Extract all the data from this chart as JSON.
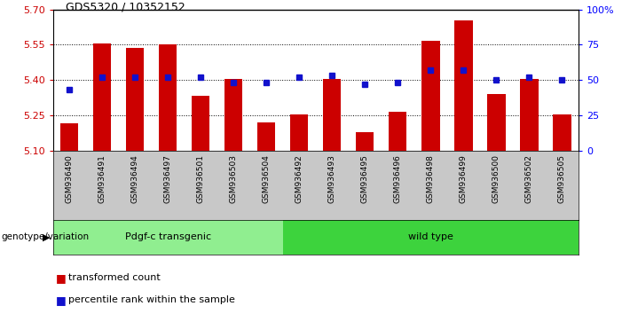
{
  "title": "GDS5320 / 10352152",
  "samples": [
    "GSM936490",
    "GSM936491",
    "GSM936494",
    "GSM936497",
    "GSM936501",
    "GSM936503",
    "GSM936504",
    "GSM936492",
    "GSM936493",
    "GSM936495",
    "GSM936496",
    "GSM936498",
    "GSM936499",
    "GSM936500",
    "GSM936502",
    "GSM936505"
  ],
  "bar_values": [
    5.215,
    5.555,
    5.535,
    5.55,
    5.335,
    5.405,
    5.22,
    5.255,
    5.405,
    5.18,
    5.265,
    5.565,
    5.655,
    5.34,
    5.405,
    5.255
  ],
  "percentile_values": [
    43,
    52,
    52,
    52,
    52,
    48,
    48,
    52,
    53,
    47,
    48,
    57,
    57,
    50,
    52,
    50
  ],
  "groups": [
    {
      "label": "Pdgf-c transgenic",
      "start": 0,
      "end": 7,
      "color": "#90EE90"
    },
    {
      "label": "wild type",
      "start": 7,
      "end": 16,
      "color": "#3DD33D"
    }
  ],
  "group_label": "genotype/variation",
  "ymin": 5.1,
  "ymax": 5.7,
  "y2min": 0,
  "y2max": 100,
  "yticks": [
    5.1,
    5.25,
    5.4,
    5.55,
    5.7
  ],
  "y2ticks": [
    0,
    25,
    50,
    75,
    100
  ],
  "bar_color": "#CC0000",
  "dot_color": "#1111CC",
  "background_plot": "#FFFFFF",
  "tick_bg": "#C8C8C8",
  "legend_items": [
    "transformed count",
    "percentile rank within the sample"
  ]
}
